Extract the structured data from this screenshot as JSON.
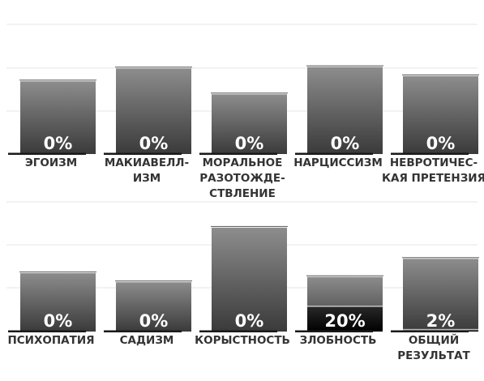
{
  "chart_data": [
    {
      "type": "bar",
      "style": "ghost-bars-behind-value-bars",
      "grid": true,
      "colors": {
        "ghost_top": "#8e8e8e",
        "ghost_bottom": "#3a3a3a",
        "value_top": "#2a2a2a",
        "value_bottom": "#000000",
        "gridline": "#e6e6e6"
      },
      "categories": [
        [
          "ЭГОИЗМ"
        ],
        [
          "МАКИАВЕЛЛ-",
          "ИЗМ"
        ],
        [
          "МОРАЛЬНОЕ",
          "РАЗОТОЖДЕ-",
          "СТВЛЕНИЕ"
        ],
        [
          "НАРЦИССИЗМ"
        ],
        [
          "НЕВРОТИЧЕС-",
          "КАЯ ПРЕТЕНЗИЯ"
        ]
      ],
      "values": [
        0,
        0,
        0,
        0,
        0
      ],
      "value_labels": [
        "0%",
        "0%",
        "0%",
        "0%",
        "0%"
      ],
      "background_values": [
        57,
        67,
        47,
        68,
        61
      ],
      "ylim": [
        0,
        100
      ]
    },
    {
      "type": "bar",
      "style": "ghost-bars-behind-value-bars",
      "grid": true,
      "colors": {
        "ghost_top": "#8e8e8e",
        "ghost_bottom": "#3a3a3a",
        "value_top": "#2a2a2a",
        "value_bottom": "#000000",
        "gridline": "#e6e6e6"
      },
      "categories": [
        [
          "ПСИХОПАТИЯ"
        ],
        [
          "САДИЗМ"
        ],
        [
          "КОРЫСТНОСТЬ"
        ],
        [
          "ЗЛОБНОСТЬ"
        ],
        [
          "ОБЩИЙ",
          "РЕЗУЛЬТАТ"
        ]
      ],
      "values": [
        0,
        0,
        0,
        20,
        2
      ],
      "value_labels": [
        "0%",
        "0%",
        "0%",
        "20%",
        "2%"
      ],
      "background_values": [
        46,
        39,
        81,
        43,
        57
      ],
      "ylim": [
        0,
        100
      ]
    }
  ]
}
